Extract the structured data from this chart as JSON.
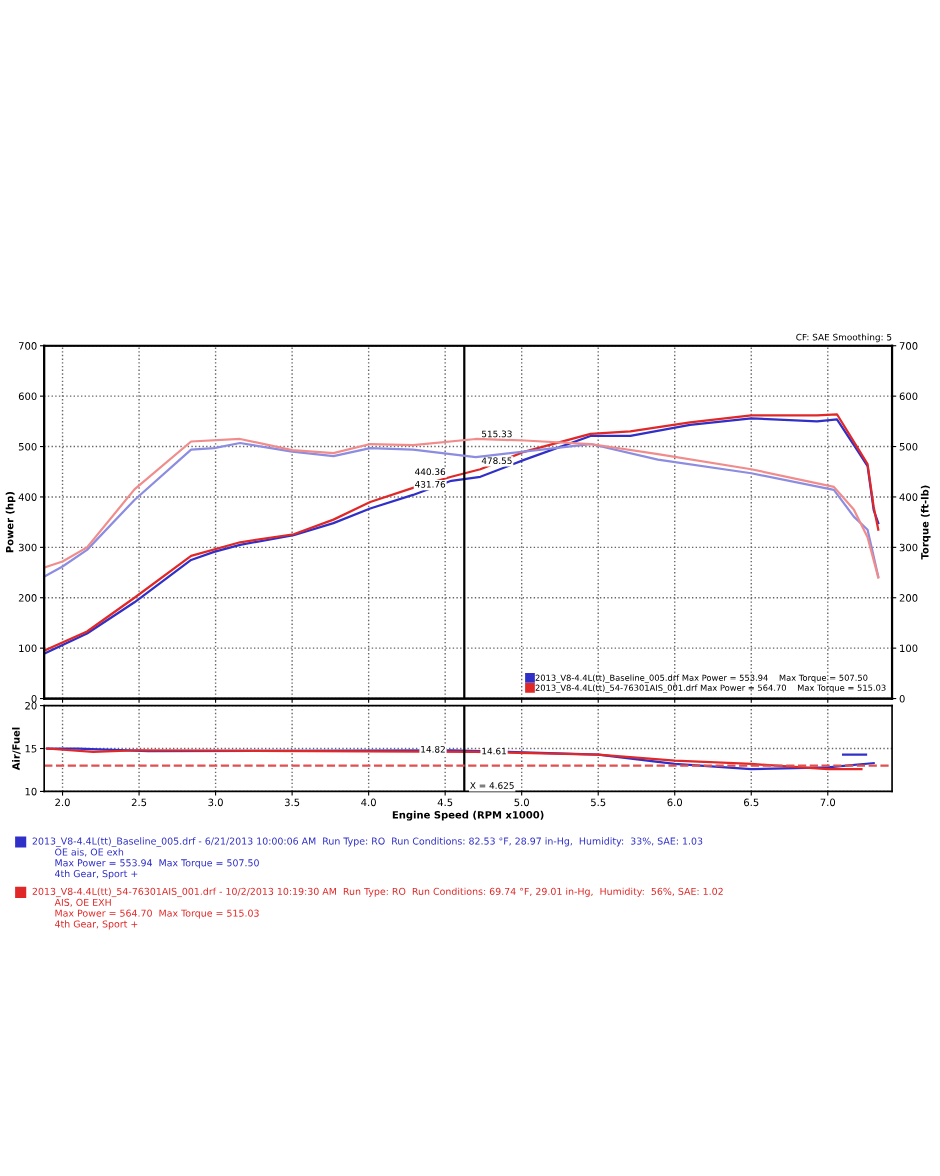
{
  "chart_data": [
    {
      "type": "line",
      "xlim": [
        1.88,
        7.42
      ],
      "xticks": [
        {
          "value": 2,
          "label": null
        },
        {
          "value": 2.5,
          "label": null
        },
        {
          "value": 3,
          "label": null
        },
        {
          "value": 3.5,
          "label": null
        },
        {
          "value": 4,
          "label": null
        },
        {
          "value": 4.5,
          "label": null
        },
        {
          "value": 5,
          "label": null
        },
        {
          "value": 5.5,
          "label": null
        },
        {
          "value": 6,
          "label": null
        },
        {
          "value": 6.5,
          "label": null
        },
        {
          "value": 7,
          "label": null
        }
      ],
      "ylim": [
        0,
        700
      ],
      "yticks": [
        0,
        100,
        200,
        300,
        400,
        500,
        600,
        700
      ],
      "y2lim": [
        0,
        700
      ],
      "y2ticks": [
        0,
        100,
        200,
        300,
        400,
        500,
        600,
        700
      ],
      "ylabel": "Power (hp)",
      "y2label": "Torque (ft-lb)",
      "grid": true,
      "legend": "bottom right",
      "tick_labels": "y",
      "series": [
        {
          "name": "2013_V8-4.4L(tt)_Baseline_005.drf Max Power = 553.94    Max Torque = 507.50",
          "color": "#3030c8",
          "x": [
            1.88,
            2.16,
            2.47,
            2.84,
            2.99,
            3.16,
            3.51,
            3.77,
            4.01,
            4.29,
            4.54,
            4.73,
            5.02,
            5.45,
            5.71,
            6.1,
            6.5,
            6.93,
            7.06,
            7.19,
            7.26,
            7.3,
            7.33
          ],
          "values": [
            89,
            129,
            191,
            275,
            291,
            305,
            324,
            348,
            377,
            404,
            432,
            440,
            474,
            521,
            521,
            543,
            556,
            550,
            554,
            494,
            461,
            374,
            348
          ]
        },
        {
          "name": "2013_V8-4.4L(tt)_54-76301AIS_001.drf Max Power = 564.70    Max Torque = 515.03",
          "color": "#e02828",
          "x": [
            1.88,
            2.16,
            2.47,
            2.84,
            3.16,
            3.51,
            3.77,
            4.01,
            4.29,
            4.54,
            4.73,
            5.02,
            5.45,
            5.71,
            6.1,
            6.5,
            6.93,
            7.06,
            7.19,
            7.26,
            7.3,
            7.33
          ],
          "values": [
            95,
            133,
            200,
            283,
            310,
            326,
            355,
            390,
            418,
            440,
            455,
            490,
            525,
            530,
            548,
            562,
            562,
            564,
            500,
            465,
            380,
            335
          ]
        },
        {
          "color": "#8c8ce0",
          "axis": "y2",
          "x": [
            1.88,
            2.0,
            2.16,
            2.47,
            2.84,
            2.99,
            3.16,
            3.5,
            3.77,
            4.01,
            4.29,
            4.7,
            5.45,
            5.89,
            6.5,
            7.04,
            7.17,
            7.26,
            7.33
          ],
          "values": [
            242,
            262,
            295,
            394,
            494,
            497,
            507,
            490,
            481,
            497,
            494,
            479,
            505,
            474,
            447,
            414,
            361,
            335,
            242
          ]
        },
        {
          "color": "#f08c8c",
          "axis": "y2",
          "x": [
            1.88,
            2.0,
            2.16,
            2.47,
            2.84,
            3.16,
            3.5,
            3.77,
            4.01,
            4.29,
            4.7,
            5.02,
            5.45,
            5.89,
            6.5,
            7.04,
            7.17,
            7.26,
            7.33
          ],
          "values": [
            260,
            272,
            300,
            415,
            510,
            515,
            493,
            487,
            505,
            503,
            515,
            512,
            505,
            485,
            455,
            420,
            375,
            320,
            240
          ]
        }
      ],
      "ref_lines": [
        {
          "axis": "x",
          "value": 4.625,
          "color": "#000000"
        }
      ],
      "annotations": [
        "CF: SAE Smoothing: 5",
        {
          "text": "431.76",
          "x": 4.54,
          "y": 432
        },
        {
          "text": "440.36",
          "x": 4.54,
          "y": 440
        },
        {
          "text": "478.55",
          "x": 4.7,
          "y": 479
        },
        {
          "text": "515.33",
          "x": 4.7,
          "y": 515
        }
      ]
    },
    {
      "type": "line",
      "xlim": [
        1.88,
        7.42
      ],
      "xticks": [
        {
          "value": 2,
          "label": "2.0"
        },
        {
          "value": 2.5,
          "label": "2.5"
        },
        {
          "value": 3,
          "label": "3.0"
        },
        {
          "value": 3.5,
          "label": "3.5"
        },
        {
          "value": 4,
          "label": "4.0"
        },
        {
          "value": 4.5,
          "label": "4.5"
        },
        {
          "value": 5,
          "label": "5.0"
        },
        {
          "value": 5.5,
          "label": "5.5"
        },
        {
          "value": 6,
          "label": "6.0"
        },
        {
          "value": 6.5,
          "label": "6.5"
        },
        {
          "value": 7,
          "label": "7.0"
        }
      ],
      "ylim": [
        10,
        20
      ],
      "yticks": [
        10,
        15,
        20
      ],
      "ylabel": "Air/Fuel",
      "xlabel": "Engine Speed (RPM x1000)",
      "grid": true,
      "series": [
        {
          "color": "#3030c8",
          "x": [
            1.9,
            2.1,
            2.56,
            4.54,
            5.5,
            6.0,
            6.5,
            7.0,
            7.3
          ],
          "values": [
            15.0,
            15.0,
            14.7,
            14.8,
            14.3,
            13.2,
            12.6,
            12.8,
            13.3
          ]
        },
        {
          "color": "#e02828",
          "x": [
            1.9,
            2.2,
            2.5,
            4.7,
            5.5,
            6.0,
            6.5,
            7.0,
            7.22
          ],
          "values": [
            15.0,
            14.6,
            14.8,
            14.6,
            14.3,
            13.6,
            13.2,
            12.6,
            12.6
          ]
        },
        {
          "color": "#3030c8",
          "x": [
            7.1,
            7.25
          ],
          "values": [
            14.3,
            14.3
          ]
        }
      ],
      "ref_lines": [
        {
          "axis": "x",
          "value": 4.625,
          "color": "#000000"
        },
        {
          "axis": "y",
          "value": 13.0,
          "color": "#e05050",
          "line_style": "dashed"
        }
      ],
      "annotations": [
        {
          "text": "X = 4.625",
          "x": 4.625,
          "y": 10.6
        },
        {
          "text": "14.82",
          "x": 4.54,
          "y": 14.82
        },
        {
          "text": "14.61",
          "x": 4.7,
          "y": 14.61
        },
        "2013_V8-4.4L(tt)_Baseline_005.drf - 6/21/2013 10:00:06 AM  Run Type: RO  Run Conditions: 82.53 °F, 28.97 in-Hg,  Humidity:  33%, SAE: 1.03",
        "OE ais, OE exh",
        "Max Power = 553.94  Max Torque = 507.50",
        "4th Gear, Sport +",
        "2013_V8-4.4L(tt)_54-76301AIS_001.drf - 10/2/2013 10:19:30 AM  Run Type: RO  Run Conditions: 69.74 °F, 29.01 in-Hg,  Humidity:  56%, SAE: 1.02",
        "AIS, OE EXH",
        "Max Power = 564.70  Max Torque = 515.03",
        "4th Gear, Sport +"
      ]
    }
  ]
}
